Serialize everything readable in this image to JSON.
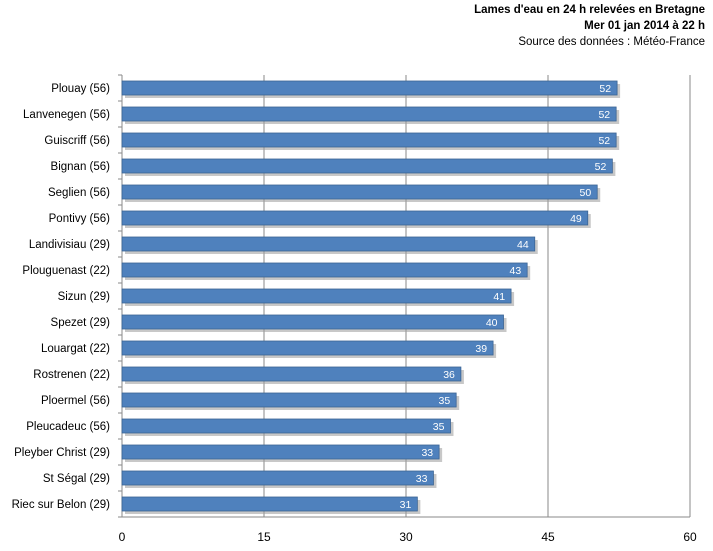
{
  "chart_data": {
    "type": "bar",
    "orientation": "horizontal",
    "title": "Lames d'eau en 24 h relevées en Bretagne",
    "subtitle": "Mer 01 jan 2014 à 22 h",
    "source": "Source des données : Météo-France",
    "categories": [
      "Plouay (56)",
      "Lanvenegen (56)",
      "Guiscriff (56)",
      "Bignan (56)",
      "Seglien (56)",
      "Pontivy (56)",
      "Landivisiau (29)",
      "Plouguenast (22)",
      "Sizun (29)",
      "Spezet (29)",
      "Louargat (22)",
      "Rostrenen (22)",
      "Ploermel (56)",
      "Pleucadeuc (56)",
      "Pleyber Christ (29)",
      "St Ségal (29)",
      "Riec sur Belon (29)"
    ],
    "values": [
      52.3,
      52.2,
      52.2,
      51.8,
      50.2,
      49.2,
      43.6,
      42.8,
      41.1,
      40.3,
      39.2,
      35.8,
      35.3,
      34.7,
      33.5,
      32.9,
      31.2
    ],
    "value_labels": [
      "52",
      "52",
      "52",
      "52",
      "50",
      "49",
      "44",
      "43",
      "41",
      "40",
      "39",
      "36",
      "35",
      "35",
      "33",
      "33",
      "31"
    ],
    "xlim": [
      0,
      60
    ],
    "xticks": [
      "0",
      "15",
      "30",
      "45",
      "60"
    ],
    "grid": true,
    "bar_color": "#4F81BD",
    "bar_border_color": "#3B6493",
    "label_color": "#ffffff"
  }
}
